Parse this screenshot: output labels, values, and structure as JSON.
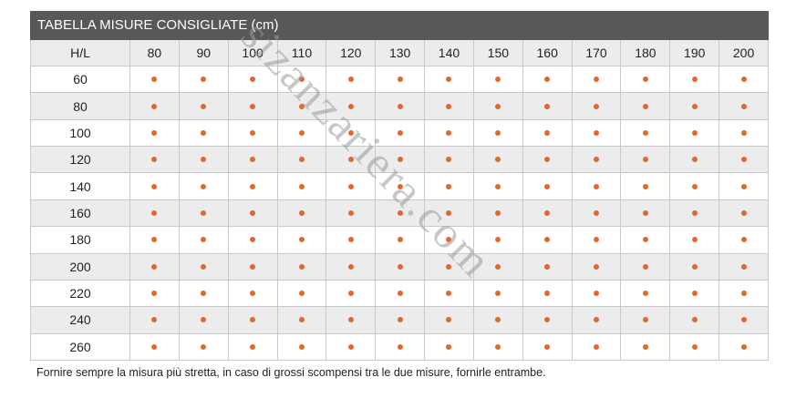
{
  "title": "TABELLA MISURE CONSIGLIATE (cm)",
  "table": {
    "corner": "H/L",
    "columns": [
      "80",
      "90",
      "100",
      "110",
      "120",
      "130",
      "140",
      "150",
      "160",
      "170",
      "180",
      "190",
      "200"
    ],
    "rows": [
      "60",
      "80",
      "100",
      "120",
      "140",
      "160",
      "180",
      "200",
      "220",
      "240",
      "260"
    ]
  },
  "note": "Fornire sempre la misura più stretta, in caso di grossi scompensi tra le due misure, fornirle entrambe.",
  "watermark": "sizanzariera.com"
}
